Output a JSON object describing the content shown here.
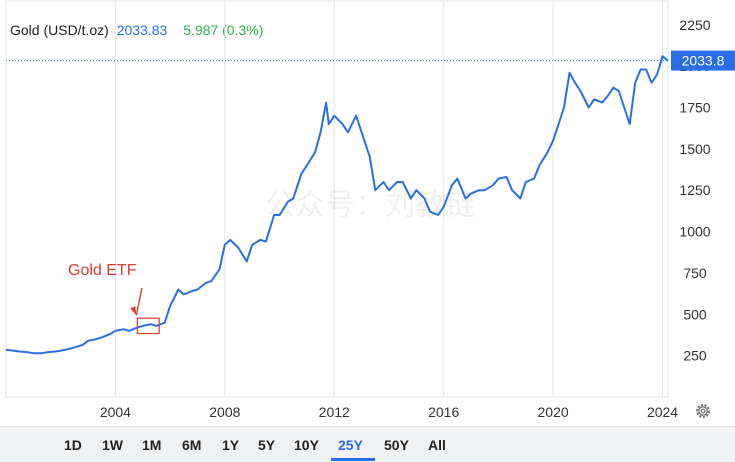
{
  "header": {
    "title": "Gold (USD/t.oz)",
    "price": "2033.83",
    "change": "5.987 (0.3%)"
  },
  "price_tag": "2033.8",
  "annotation": {
    "label": "Gold ETF"
  },
  "watermark": "公众号：刘教链",
  "colors": {
    "line": "#2a6ee6",
    "change_positive": "#2db34a",
    "annotation": "#e03a2f",
    "active_range": "#2a6ee6"
  },
  "ranges": [
    "1D",
    "1W",
    "1M",
    "6M",
    "1Y",
    "5Y",
    "10Y",
    "25Y",
    "50Y",
    "All"
  ],
  "active_range": "25Y",
  "icons": {
    "settings": "gear-icon"
  },
  "chart_data": {
    "type": "line",
    "title": "",
    "ylim": [
      0,
      2400
    ],
    "xlim": [
      2000.0,
      2024.2
    ],
    "x_ticks": [
      "2004",
      "2008",
      "2012",
      "2016",
      "2020",
      "2024"
    ],
    "y_ticks": [
      "250",
      "500",
      "750",
      "1000",
      "1250",
      "1500",
      "1750",
      "2000",
      "2250"
    ],
    "grid": true,
    "annotation": {
      "text": "Gold ETF",
      "x_range": [
        2004.8,
        2005.6
      ],
      "y_range": [
        420,
        440
      ]
    },
    "current_value": 2033.8,
    "series": [
      {
        "x": [
          2000.0,
          2000.3,
          2000.5,
          2000.8,
          2001.0,
          2001.3,
          2001.5,
          2001.8,
          2002.0,
          2002.3,
          2002.5,
          2002.8,
          2003.0,
          2003.3,
          2003.5,
          2003.8,
          2004.0,
          2004.3,
          2004.5,
          2004.8,
          2005.0,
          2005.3,
          2005.5,
          2005.8,
          2006.0,
          2006.3,
          2006.5,
          2006.8,
          2007.0,
          2007.3,
          2007.5,
          2007.8,
          2008.0,
          2008.2,
          2008.5,
          2008.8,
          2009.0,
          2009.3,
          2009.5,
          2009.8,
          2010.0,
          2010.3,
          2010.5,
          2010.8,
          2011.0,
          2011.3,
          2011.5,
          2011.7,
          2011.8,
          2012.0,
          2012.3,
          2012.5,
          2012.8,
          2013.0,
          2013.3,
          2013.5,
          2013.8,
          2014.0,
          2014.3,
          2014.5,
          2014.8,
          2015.0,
          2015.3,
          2015.5,
          2015.8,
          2016.0,
          2016.3,
          2016.5,
          2016.8,
          2017.0,
          2017.3,
          2017.5,
          2017.8,
          2018.0,
          2018.3,
          2018.5,
          2018.8,
          2019.0,
          2019.3,
          2019.5,
          2019.8,
          2020.0,
          2020.2,
          2020.4,
          2020.6,
          2020.8,
          2021.0,
          2021.3,
          2021.5,
          2021.8,
          2022.0,
          2022.2,
          2022.4,
          2022.6,
          2022.8,
          2023.0,
          2023.2,
          2023.4,
          2023.6,
          2023.8,
          2024.0,
          2024.2
        ],
        "values": [
          285,
          280,
          275,
          270,
          265,
          265,
          270,
          275,
          280,
          290,
          300,
          315,
          340,
          350,
          360,
          380,
          400,
          410,
          400,
          420,
          430,
          440,
          430,
          450,
          550,
          650,
          620,
          640,
          650,
          690,
          700,
          770,
          920,
          950,
          900,
          820,
          920,
          950,
          940,
          1100,
          1100,
          1180,
          1200,
          1350,
          1400,
          1480,
          1600,
          1780,
          1650,
          1700,
          1650,
          1600,
          1700,
          1600,
          1450,
          1250,
          1300,
          1250,
          1300,
          1300,
          1200,
          1250,
          1200,
          1120,
          1100,
          1150,
          1280,
          1320,
          1200,
          1230,
          1250,
          1250,
          1280,
          1320,
          1330,
          1250,
          1200,
          1300,
          1320,
          1400,
          1480,
          1550,
          1650,
          1750,
          1960,
          1900,
          1850,
          1750,
          1800,
          1780,
          1820,
          1870,
          1850,
          1750,
          1650,
          1900,
          1980,
          1980,
          1900,
          1950,
          2060,
          2033.8
        ]
      }
    ]
  }
}
